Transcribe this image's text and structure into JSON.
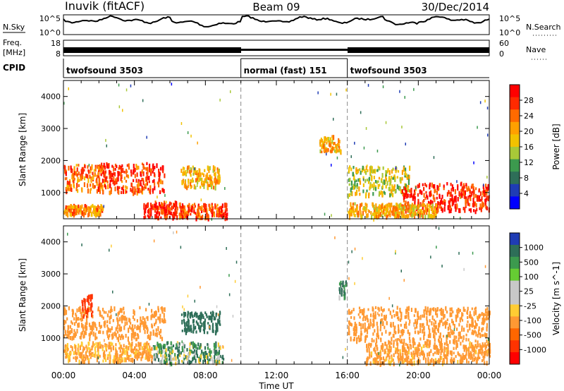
{
  "header": {
    "station": "Inuvik (fitACF)",
    "beam": "Beam 09",
    "date": "30/Dec/2014"
  },
  "strips": {
    "nsky_label": "N.Sky",
    "nsky_ticks": [
      "10^5",
      "10^0"
    ],
    "nsearch_label": "N.Search",
    "nsearch_ticks": [
      "10^5",
      "10^0"
    ],
    "freq_label": "Freq.",
    "freq_unit": "[MHz]",
    "freq_ticks": [
      "18",
      "8"
    ],
    "nave_label": "Nave",
    "nave_ticks": [
      "60",
      "0"
    ],
    "cpid_label": "CPID",
    "cpid_segments": [
      {
        "label": "twofsound 3503",
        "start_hr": 0,
        "end_hr": 10
      },
      {
        "label": "normal (fast) 151",
        "start_hr": 10,
        "end_hr": 16
      },
      {
        "label": "twofsound 3503",
        "start_hr": 16,
        "end_hr": 24
      }
    ]
  },
  "panels": {
    "ylabel": "Slant Range [km]",
    "yticks": [
      "4000",
      "3000",
      "2000",
      "1000"
    ],
    "xticks": [
      "00:00",
      "04:00",
      "08:00",
      "12:00",
      "16:00",
      "20:00",
      "00:00"
    ],
    "xlabel": "Time UT"
  },
  "power_colorbar": {
    "label": "Power [dB]",
    "ticks": [
      "28",
      "24",
      "20",
      "16",
      "12",
      "8",
      "4"
    ],
    "colors": [
      "#ff0000",
      "#ff2a00",
      "#ff6a00",
      "#ffa000",
      "#f2c200",
      "#a8c838",
      "#3c9a4e",
      "#2e6e58",
      "#1f3cb4",
      "#0000ff"
    ]
  },
  "velocity_colorbar": {
    "label": "Velocity [m s^-1]",
    "ticks": [
      "1000",
      "500",
      "100",
      "25",
      "-25",
      "-100",
      "-500",
      "-1000"
    ],
    "colors": [
      "#1f3cb4",
      "#2e6e58",
      "#3c9a4e",
      "#66cc33",
      "#c8c8c8",
      "#c8c8c8",
      "#ffcc33",
      "#ff9933",
      "#ff6600",
      "#ff3300",
      "#ff0000"
    ]
  },
  "chart_data": {
    "type": "heatmap",
    "title": "Inuvik (fitACF)",
    "xlabel": "Time UT",
    "ylabel": "Slant Range [km]",
    "xlim_hours": [
      0,
      24
    ],
    "ylim_km": [
      180,
      4500
    ],
    "mode_change_times_hr": [
      10,
      16
    ],
    "panels": [
      {
        "name": "Power [dB]",
        "clim": [
          0,
          30
        ],
        "regions": [
          {
            "t0": 0.0,
            "t1": 2.4,
            "r0": 1100,
            "r1": 1900,
            "value": 24
          },
          {
            "t0": 1.8,
            "t1": 5.7,
            "r0": 1050,
            "r1": 1950,
            "value": 26
          },
          {
            "t0": 0.0,
            "t1": 2.2,
            "r0": 350,
            "r1": 650,
            "value": 22
          },
          {
            "t0": 4.5,
            "t1": 6.4,
            "r0": 250,
            "r1": 750,
            "value": 28
          },
          {
            "t0": 6.5,
            "t1": 9.2,
            "r0": 250,
            "r1": 700,
            "value": 26
          },
          {
            "t0": 6.6,
            "t1": 8.8,
            "r0": 1200,
            "r1": 1850,
            "value": 20
          },
          {
            "t0": 16.0,
            "t1": 19.5,
            "r0": 950,
            "r1": 1850,
            "value": 16
          },
          {
            "t0": 19.0,
            "t1": 24.0,
            "r0": 450,
            "r1": 1350,
            "value": 28
          },
          {
            "t0": 16.0,
            "t1": 21.0,
            "r0": 300,
            "r1": 700,
            "value": 20
          },
          {
            "t0": 14.4,
            "t1": 15.6,
            "r0": 2300,
            "r1": 2800,
            "value": 20
          }
        ]
      },
      {
        "name": "Velocity [m s^-1]",
        "clim": [
          -1000,
          1000
        ],
        "regions": [
          {
            "t0": 0.0,
            "t1": 5.7,
            "r0": 1000,
            "r1": 2000,
            "value": -300
          },
          {
            "t0": 0.0,
            "t1": 5.0,
            "r0": 300,
            "r1": 900,
            "value": -150
          },
          {
            "t0": 5.0,
            "t1": 9.0,
            "r0": 250,
            "r1": 900,
            "value": 60
          },
          {
            "t0": 6.6,
            "t1": 8.8,
            "r0": 1200,
            "r1": 1850,
            "value": 300
          },
          {
            "t0": 16.0,
            "t1": 24.0,
            "r0": 900,
            "r1": 2000,
            "value": -350
          },
          {
            "t0": 17.0,
            "t1": 24.0,
            "r0": 250,
            "r1": 900,
            "value": -200
          },
          {
            "t0": 15.5,
            "t1": 16.0,
            "r0": 2300,
            "r1": 2800,
            "value": 100
          },
          {
            "t0": 1.0,
            "t1": 1.6,
            "r0": 1700,
            "r1": 2400,
            "value": -900
          }
        ]
      }
    ]
  }
}
